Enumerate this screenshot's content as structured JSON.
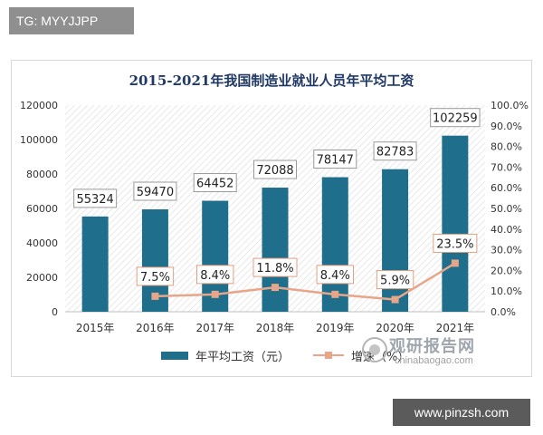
{
  "badges": {
    "top_left": "TG: MYYJJPP",
    "bottom_right": "www.pinzsh.com"
  },
  "watermark": {
    "name": "观研报告网",
    "domain": "chinabaogao.com"
  },
  "colors": {
    "bar": "#1f6e8c",
    "line": "#e7a689",
    "title": "#1f3864",
    "hatch": "#e3e3e3"
  },
  "chart_data": {
    "type": "bar",
    "title": "2015-2021年我国制造业就业人员年平均工资",
    "categories": [
      "2015年",
      "2016年",
      "2017年",
      "2018年",
      "2019年",
      "2020年",
      "2021年"
    ],
    "series": [
      {
        "name": "年平均工资（元）",
        "type": "bar",
        "axis": "left",
        "values": [
          55324,
          59470,
          64452,
          72088,
          78147,
          82783,
          102259
        ],
        "labels": [
          "55324",
          "59470",
          "64452",
          "72088",
          "78147",
          "82783",
          "102259"
        ]
      },
      {
        "name": "增速（%）",
        "type": "line",
        "axis": "right",
        "values": [
          null,
          7.5,
          8.4,
          11.8,
          8.4,
          5.9,
          23.5
        ],
        "labels": [
          "",
          "7.5%",
          "8.4%",
          "11.8%",
          "8.4%",
          "5.9%",
          "23.5%"
        ]
      }
    ],
    "y_left": {
      "min": 0,
      "max": 120000,
      "ticks": [
        "0",
        "20000",
        "40000",
        "60000",
        "80000",
        "100000",
        "120000"
      ]
    },
    "y_right": {
      "min": 0,
      "max": 100,
      "ticks": [
        "0.0%",
        "10.0%",
        "20.0%",
        "30.0%",
        "40.0%",
        "50.0%",
        "60.0%",
        "70.0%",
        "80.0%",
        "90.0%",
        "100.0%"
      ]
    },
    "grid": false,
    "legend_position": "bottom"
  }
}
